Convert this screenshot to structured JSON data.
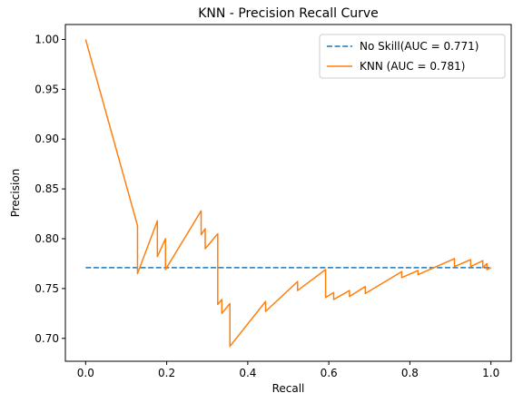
{
  "chart_data": {
    "type": "line",
    "title": "KNN - Precision Recall Curve",
    "xlabel": "Recall",
    "ylabel": "Precision",
    "xlim": [
      -0.05,
      1.05
    ],
    "ylim": [
      0.677,
      1.015
    ],
    "xticks": [
      0.0,
      0.2,
      0.4,
      0.6,
      0.8,
      1.0
    ],
    "xtick_labels": [
      "0.0",
      "0.2",
      "0.4",
      "0.6",
      "0.8",
      "1.0"
    ],
    "yticks": [
      0.7,
      0.75,
      0.8,
      0.85,
      0.9,
      0.95,
      1.0
    ],
    "ytick_labels": [
      "0.70",
      "0.75",
      "0.80",
      "0.85",
      "0.90",
      "0.95",
      "1.00"
    ],
    "grid": false,
    "legend_position": "top-right",
    "series": [
      {
        "name": "No Skill(AUC = 0.771)",
        "style": "dashed",
        "color": "#1f77b4",
        "x": [
          0.0,
          1.0
        ],
        "y": [
          0.771,
          0.771
        ]
      },
      {
        "name": "KNN (AUC = 0.781)",
        "style": "solid",
        "color": "#ff7f0e",
        "x": [
          0.0,
          0.128,
          0.128,
          0.177,
          0.177,
          0.197,
          0.197,
          0.285,
          0.285,
          0.295,
          0.295,
          0.326,
          0.326,
          0.336,
          0.336,
          0.356,
          0.356,
          0.444,
          0.444,
          0.523,
          0.523,
          0.592,
          0.592,
          0.612,
          0.612,
          0.651,
          0.651,
          0.69,
          0.69,
          0.78,
          0.78,
          0.82,
          0.82,
          0.91,
          0.91,
          0.95,
          0.95,
          0.98,
          0.98,
          0.99,
          0.99,
          1.0
        ],
        "y": [
          1.0,
          0.813,
          0.765,
          0.818,
          0.782,
          0.8,
          0.769,
          0.828,
          0.804,
          0.81,
          0.79,
          0.805,
          0.734,
          0.739,
          0.725,
          0.735,
          0.692,
          0.737,
          0.727,
          0.757,
          0.748,
          0.769,
          0.741,
          0.746,
          0.739,
          0.748,
          0.742,
          0.752,
          0.745,
          0.767,
          0.761,
          0.768,
          0.764,
          0.78,
          0.772,
          0.779,
          0.772,
          0.778,
          0.771,
          0.775,
          0.769,
          0.771
        ]
      }
    ]
  }
}
